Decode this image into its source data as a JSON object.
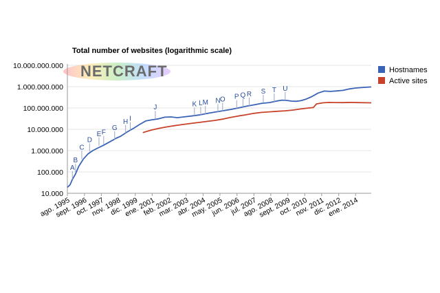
{
  "chart_data": {
    "type": "line",
    "title": "Total number of websites (logarithmic scale)",
    "scale": "log",
    "ylim": [
      10000,
      10000000000
    ],
    "yticks": [
      "10.000",
      "100.000",
      "1.000.000",
      "10.000.000",
      "100.000.000",
      "1.000.000.000",
      "10.000.000.000"
    ],
    "yticks_values": [
      10000,
      100000,
      1000000,
      10000000,
      100000000,
      1000000000,
      10000000000
    ],
    "xlim": [
      1995.58,
      2015.0
    ],
    "xticks": [
      {
        "label": "ago. 1995",
        "x": 1995.58
      },
      {
        "label": "sept. 1996",
        "x": 1996.67
      },
      {
        "label": "oct. 1997",
        "x": 1997.75
      },
      {
        "label": "nov. 1998",
        "x": 1998.83
      },
      {
        "label": "dic. 1999",
        "x": 1999.92
      },
      {
        "label": "ene. 2001",
        "x": 2001.0
      },
      {
        "label": "feb. 2002",
        "x": 2002.08
      },
      {
        "label": "mar. 2003",
        "x": 2003.17
      },
      {
        "label": "abr. 2004",
        "x": 2004.25
      },
      {
        "label": "may. 2005",
        "x": 2005.33
      },
      {
        "label": "jun. 2006",
        "x": 2006.42
      },
      {
        "label": "jul. 2007",
        "x": 2007.5
      },
      {
        "label": "ago. 2008",
        "x": 2008.58
      },
      {
        "label": "sept. 2009",
        "x": 2009.67
      },
      {
        "label": "oct. 2010",
        "x": 2010.75
      },
      {
        "label": "nov. 2011",
        "x": 2011.83
      },
      {
        "label": "dic. 2012",
        "x": 2012.92
      },
      {
        "label": "ene. 2014",
        "x": 2014.0
      }
    ],
    "series": [
      {
        "name": "Hostnames",
        "color": "#3a62b5",
        "x": [
          1995.58,
          1995.75,
          1995.9,
          1996.1,
          1996.3,
          1996.6,
          1996.9,
          1997.2,
          1997.5,
          1997.9,
          1998.3,
          1998.7,
          1999.0,
          1999.4,
          1999.8,
          2000.2,
          2000.6,
          2001.0,
          2001.4,
          2001.8,
          2002.2,
          2002.6,
          2003.0,
          2003.5,
          2004.0,
          2004.5,
          2005.0,
          2005.5,
          2006.0,
          2006.5,
          2007.0,
          2007.5,
          2008.0,
          2008.5,
          2009.0,
          2009.3,
          2009.6,
          2009.9,
          2010.2,
          2010.5,
          2010.8,
          2011.2,
          2011.6,
          2012.0,
          2012.4,
          2012.8,
          2013.2,
          2013.6,
          2014.0,
          2014.5,
          2015.0
        ],
        "values": [
          19000,
          25000,
          45000,
          80000,
          180000,
          400000,
          700000,
          1000000,
          1300000,
          1800000,
          2600000,
          3800000,
          4800000,
          7500000,
          11000000,
          17000000,
          25000000,
          28000000,
          31000000,
          37000000,
          38000000,
          35000000,
          38000000,
          42000000,
          47000000,
          55000000,
          64000000,
          74000000,
          85000000,
          100000000,
          120000000,
          140000000,
          165000000,
          180000000,
          215000000,
          234000000,
          226000000,
          210000000,
          205000000,
          220000000,
          255000000,
          340000000,
          500000000,
          620000000,
          600000000,
          630000000,
          670000000,
          780000000,
          860000000,
          920000000,
          970000000
        ]
      },
      {
        "name": "Active sites",
        "color": "#c8412a",
        "x": [
          2000.4,
          2000.9,
          2001.4,
          2001.8,
          2002.2,
          2002.6,
          2003.0,
          2003.5,
          2004.0,
          2004.5,
          2005.0,
          2005.5,
          2006.0,
          2006.5,
          2007.0,
          2007.5,
          2008.0,
          2008.5,
          2009.0,
          2009.5,
          2010.0,
          2010.5,
          2011.0,
          2011.3,
          2011.5,
          2011.9,
          2012.3,
          2012.7,
          2013.2,
          2013.7,
          2014.2,
          2014.7,
          2015.0
        ],
        "values": [
          7000000,
          9000000,
          11000000,
          12500000,
          14000000,
          15500000,
          17000000,
          19000000,
          21000000,
          23500000,
          26000000,
          30000000,
          36000000,
          42000000,
          48000000,
          56000000,
          62000000,
          66000000,
          70000000,
          74000000,
          80000000,
          90000000,
          100000000,
          105000000,
          155000000,
          175000000,
          182000000,
          180000000,
          178000000,
          182000000,
          178000000,
          176000000,
          175000000
        ]
      }
    ],
    "annotations": [
      {
        "label": "A",
        "x": 1995.9,
        "y": 45000
      },
      {
        "label": "B",
        "x": 1996.1,
        "y": 100000
      },
      {
        "label": "C",
        "x": 1996.5,
        "y": 400000
      },
      {
        "label": "D",
        "x": 1997.0,
        "y": 900000
      },
      {
        "label": "E",
        "x": 1997.6,
        "y": 1700000
      },
      {
        "label": "F",
        "x": 1997.9,
        "y": 2000000
      },
      {
        "label": "G",
        "x": 1998.6,
        "y": 3300000
      },
      {
        "label": "H",
        "x": 1999.3,
        "y": 6500000
      },
      {
        "label": "I",
        "x": 1999.6,
        "y": 9000000
      },
      {
        "label": "J",
        "x": 2001.2,
        "y": 30000000
      },
      {
        "label": "K",
        "x": 2003.7,
        "y": 43000000
      },
      {
        "label": "L",
        "x": 2004.1,
        "y": 47000000
      },
      {
        "label": "M",
        "x": 2004.4,
        "y": 52000000
      },
      {
        "label": "N",
        "x": 2005.2,
        "y": 62000000
      },
      {
        "label": "O",
        "x": 2005.5,
        "y": 72000000
      },
      {
        "label": "P",
        "x": 2006.4,
        "y": 95000000
      },
      {
        "label": "Q",
        "x": 2006.8,
        "y": 110000000
      },
      {
        "label": "R",
        "x": 2007.2,
        "y": 125000000
      },
      {
        "label": "S",
        "x": 2008.1,
        "y": 170000000
      },
      {
        "label": "T",
        "x": 2008.8,
        "y": 195000000
      },
      {
        "label": "U",
        "x": 2009.5,
        "y": 230000000
      }
    ],
    "legend": {
      "position": "right"
    }
  },
  "logo": {
    "text": "NETCRAFT"
  }
}
